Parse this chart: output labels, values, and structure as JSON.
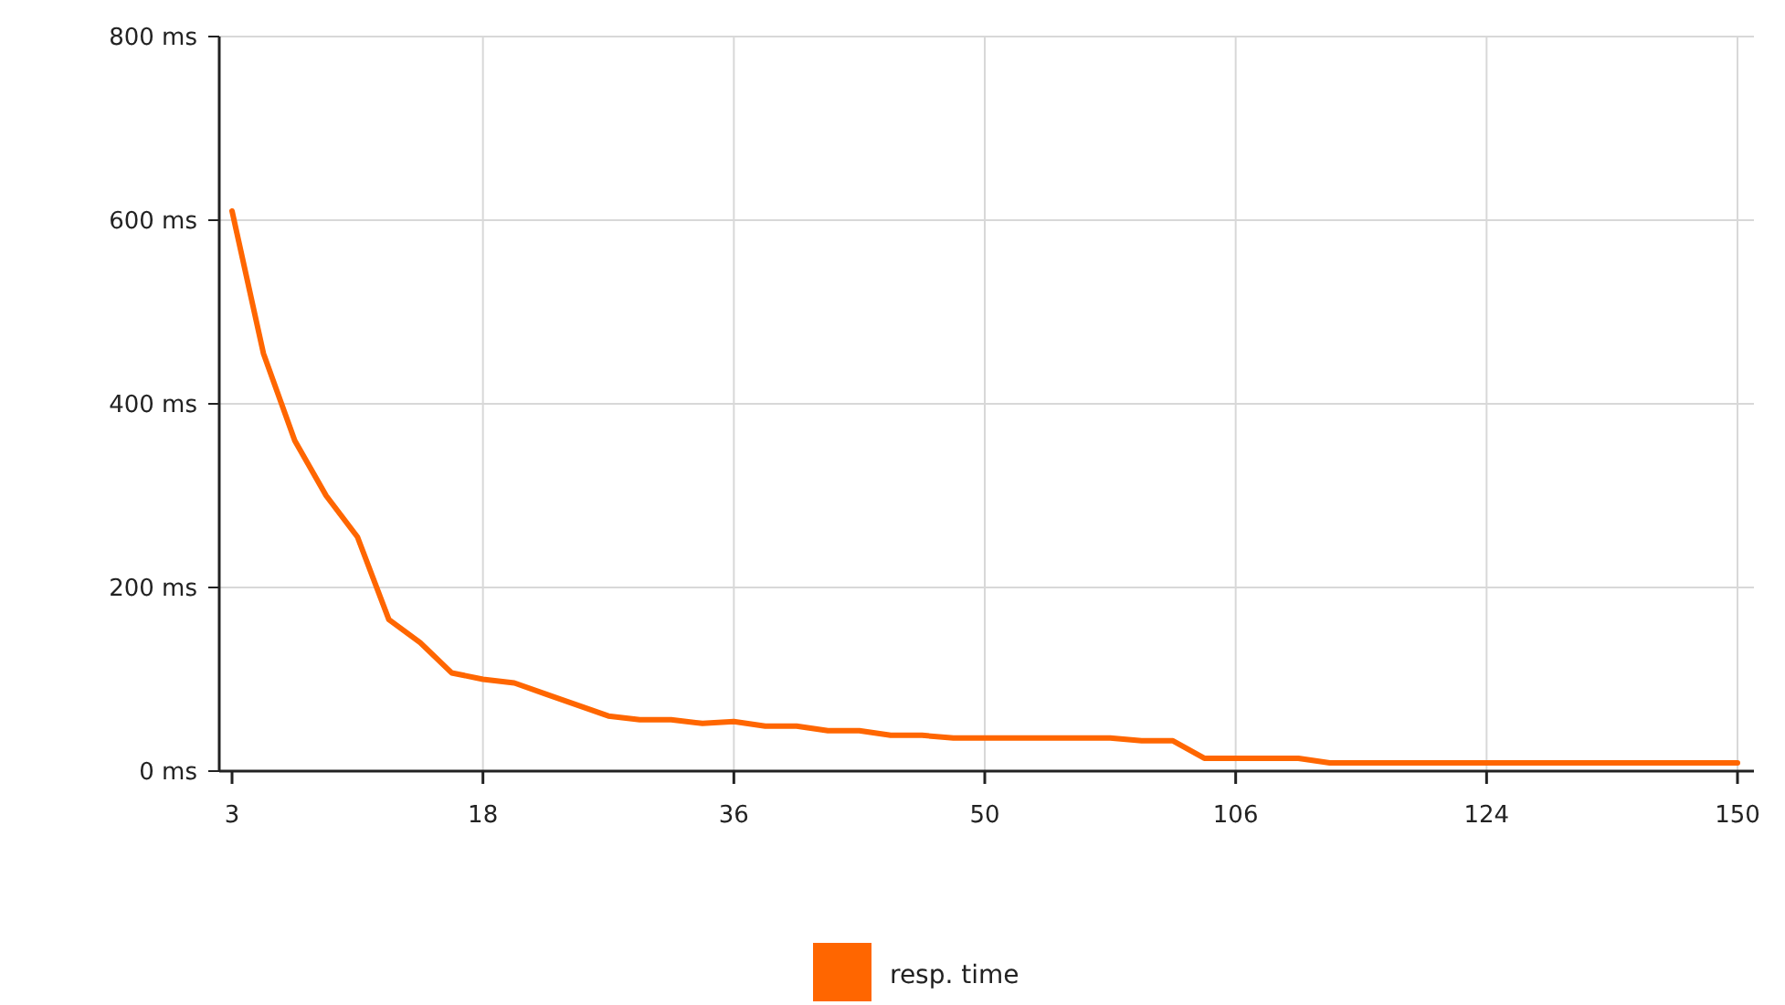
{
  "chart_data": {
    "type": "line",
    "categories": [
      "3",
      null,
      null,
      null,
      null,
      null,
      null,
      null,
      "18",
      null,
      null,
      null,
      null,
      null,
      null,
      null,
      "36",
      null,
      null,
      null,
      null,
      null,
      null,
      null,
      "50",
      null,
      null,
      null,
      null,
      null,
      null,
      null,
      "106",
      null,
      null,
      null,
      null,
      null,
      null,
      null,
      "124",
      null,
      null,
      null,
      null,
      null,
      null,
      null,
      "150"
    ],
    "series": [
      {
        "name": "resp. time",
        "color": "#ff6600",
        "values": [
          610,
          455,
          360,
          300,
          255,
          165,
          140,
          107,
          100,
          96,
          84,
          72,
          60,
          56,
          56,
          52,
          54,
          49,
          49,
          44,
          44,
          39,
          39,
          36,
          36,
          36,
          36,
          36,
          36,
          33,
          33,
          14,
          14,
          14,
          14,
          9,
          9,
          9,
          9,
          9,
          9,
          9,
          9,
          9,
          9,
          9,
          9,
          9,
          9
        ]
      }
    ],
    "ylim": [
      0,
      800
    ],
    "yticks": [
      {
        "value": 0,
        "label": "0 ms"
      },
      {
        "value": 200,
        "label": "200 ms"
      },
      {
        "value": 400,
        "label": "400 ms"
      },
      {
        "value": 600,
        "label": "600 ms"
      },
      {
        "value": 800,
        "label": "800 ms"
      }
    ],
    "grid": true,
    "legend": "bottom",
    "marker": "none",
    "line_style": "solid"
  }
}
